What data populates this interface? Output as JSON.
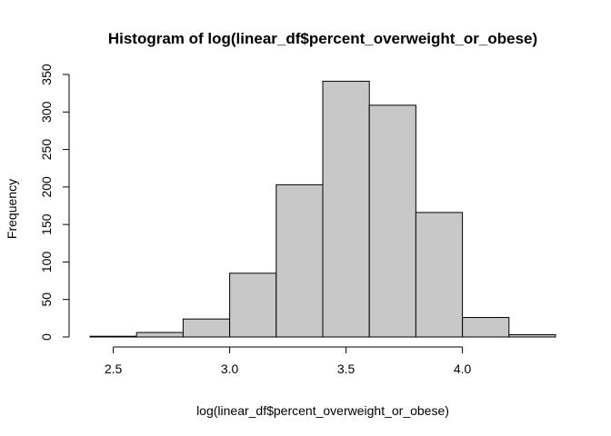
{
  "chart_data": {
    "type": "bar",
    "title": "Histogram of log(linear_df$percent_overweight_or_obese)",
    "xlabel": "log(linear_df$percent_overweight_or_obese)",
    "ylabel": "Frequency",
    "bins": [
      {
        "start": 2.4,
        "end": 2.6,
        "count": 1
      },
      {
        "start": 2.6,
        "end": 2.8,
        "count": 6
      },
      {
        "start": 2.8,
        "end": 3.0,
        "count": 24
      },
      {
        "start": 3.0,
        "end": 3.2,
        "count": 85
      },
      {
        "start": 3.2,
        "end": 3.4,
        "count": 203
      },
      {
        "start": 3.4,
        "end": 3.6,
        "count": 341
      },
      {
        "start": 3.6,
        "end": 3.8,
        "count": 309
      },
      {
        "start": 3.8,
        "end": 4.0,
        "count": 166
      },
      {
        "start": 4.0,
        "end": 4.2,
        "count": 26
      },
      {
        "start": 4.2,
        "end": 4.4,
        "count": 3
      }
    ],
    "xlim": [
      2.4,
      4.4
    ],
    "ylim": [
      0,
      350
    ],
    "x_ticks": [
      "2.5",
      "3.0",
      "3.5",
      "4.0"
    ],
    "y_ticks": [
      "0",
      "50",
      "100",
      "150",
      "200",
      "250",
      "300",
      "350"
    ],
    "bar_color": "#c8c8c8",
    "grid": false,
    "legend": "none"
  }
}
